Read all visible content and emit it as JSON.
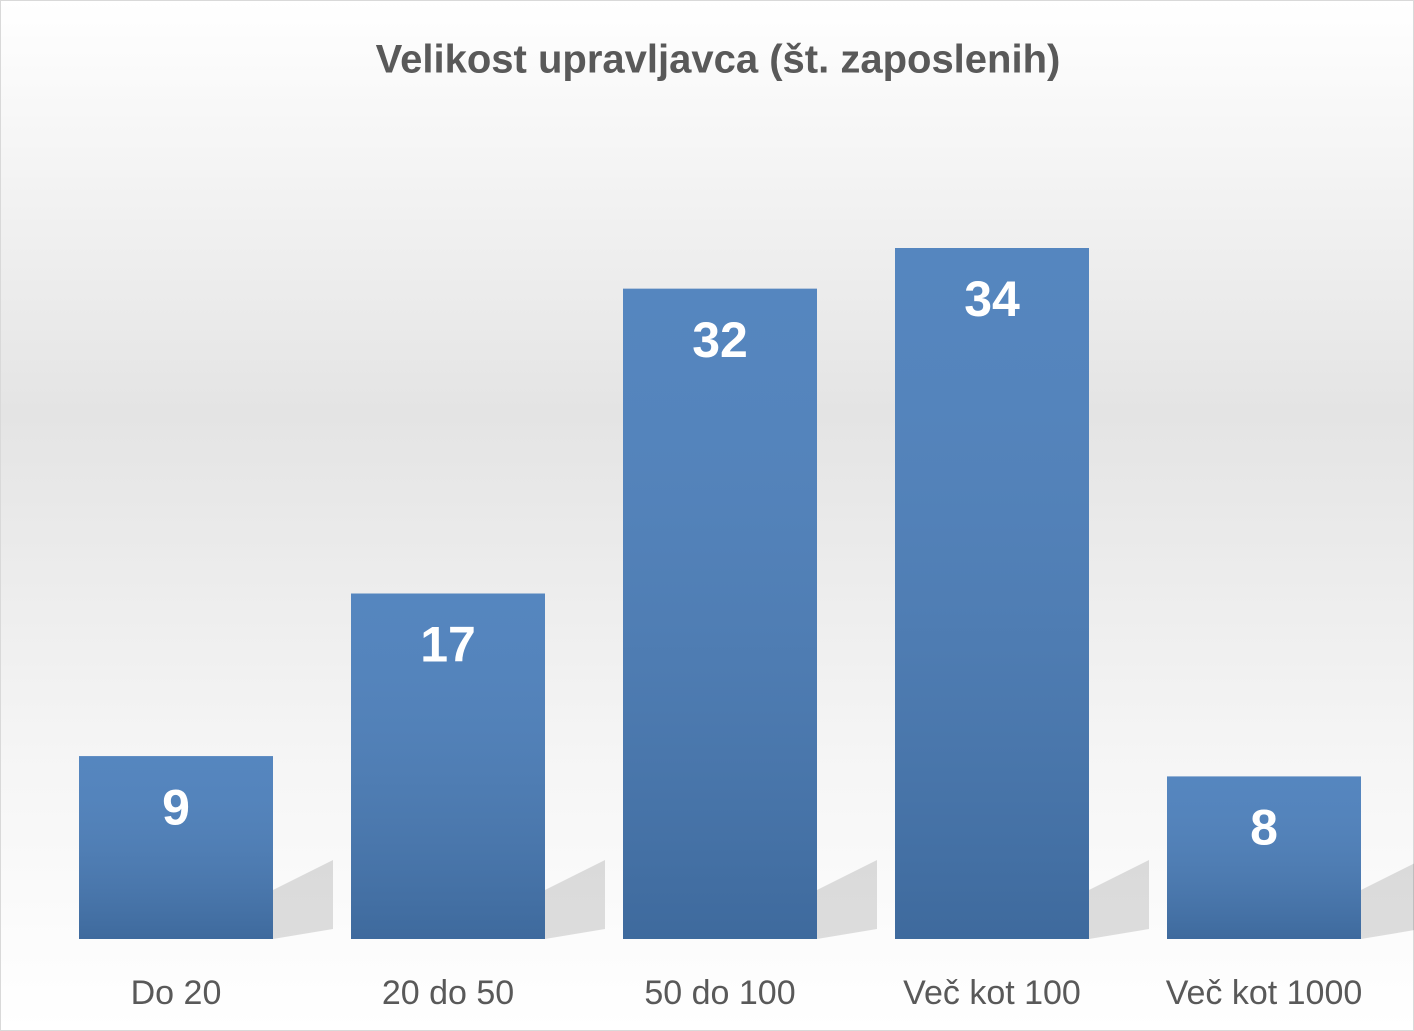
{
  "chart_data": {
    "type": "bar",
    "title": "Velikost upravljavca (št. zaposlenih)",
    "categories": [
      "Do 20",
      "20 do 50",
      "50 do 100",
      "Več kot 100",
      "Več kot 1000"
    ],
    "values": [
      9,
      17,
      32,
      34,
      8
    ],
    "color": "#4a7ebb"
  }
}
